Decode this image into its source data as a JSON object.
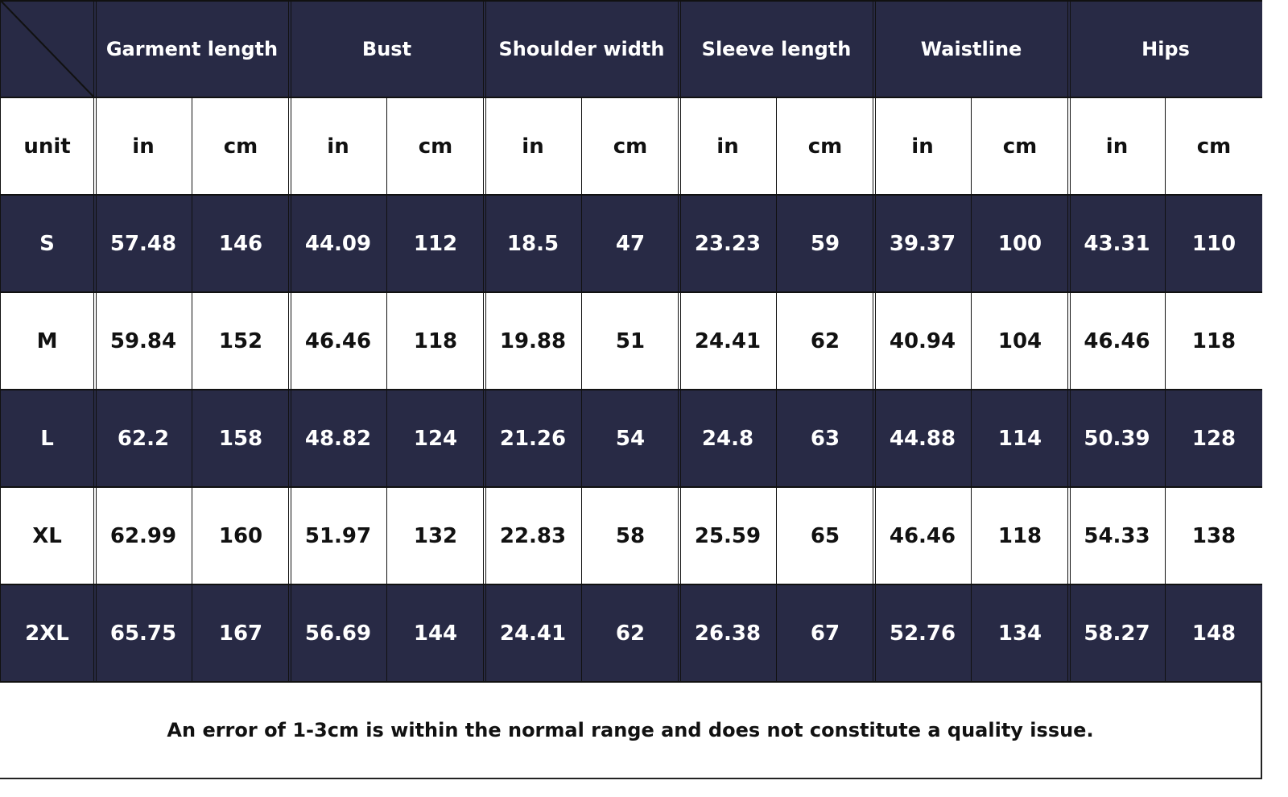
{
  "table": {
    "corner": "",
    "measurements": [
      "Garment length",
      "Bust",
      "Shoulder width",
      "Sleeve length",
      "Waistline",
      "Hips"
    ],
    "unit_label": "unit",
    "unit_in": "in",
    "unit_cm": "cm",
    "rows": [
      {
        "size": "S",
        "values": [
          "57.48",
          "146",
          "44.09",
          "112",
          "18.5",
          "47",
          "23.23",
          "59",
          "39.37",
          "100",
          "43.31",
          "110"
        ]
      },
      {
        "size": "M",
        "values": [
          "59.84",
          "152",
          "46.46",
          "118",
          "19.88",
          "51",
          "24.41",
          "62",
          "40.94",
          "104",
          "46.46",
          "118"
        ]
      },
      {
        "size": "L",
        "values": [
          "62.2",
          "158",
          "48.82",
          "124",
          "21.26",
          "54",
          "24.8",
          "63",
          "44.88",
          "114",
          "50.39",
          "128"
        ]
      },
      {
        "size": "XL",
        "values": [
          "62.99",
          "160",
          "51.97",
          "132",
          "22.83",
          "58",
          "25.59",
          "65",
          "46.46",
          "118",
          "54.33",
          "138"
        ]
      },
      {
        "size": "2XL",
        "values": [
          "65.75",
          "167",
          "56.69",
          "144",
          "24.41",
          "62",
          "26.38",
          "67",
          "52.76",
          "134",
          "58.27",
          "148"
        ]
      }
    ]
  },
  "footer": {
    "note": "An error of 1-3cm is within the normal range and does not constitute a quality issue."
  },
  "colors": {
    "dark_row": "#282a45",
    "light_row": "#ffffff",
    "grid_line": "#111111"
  }
}
